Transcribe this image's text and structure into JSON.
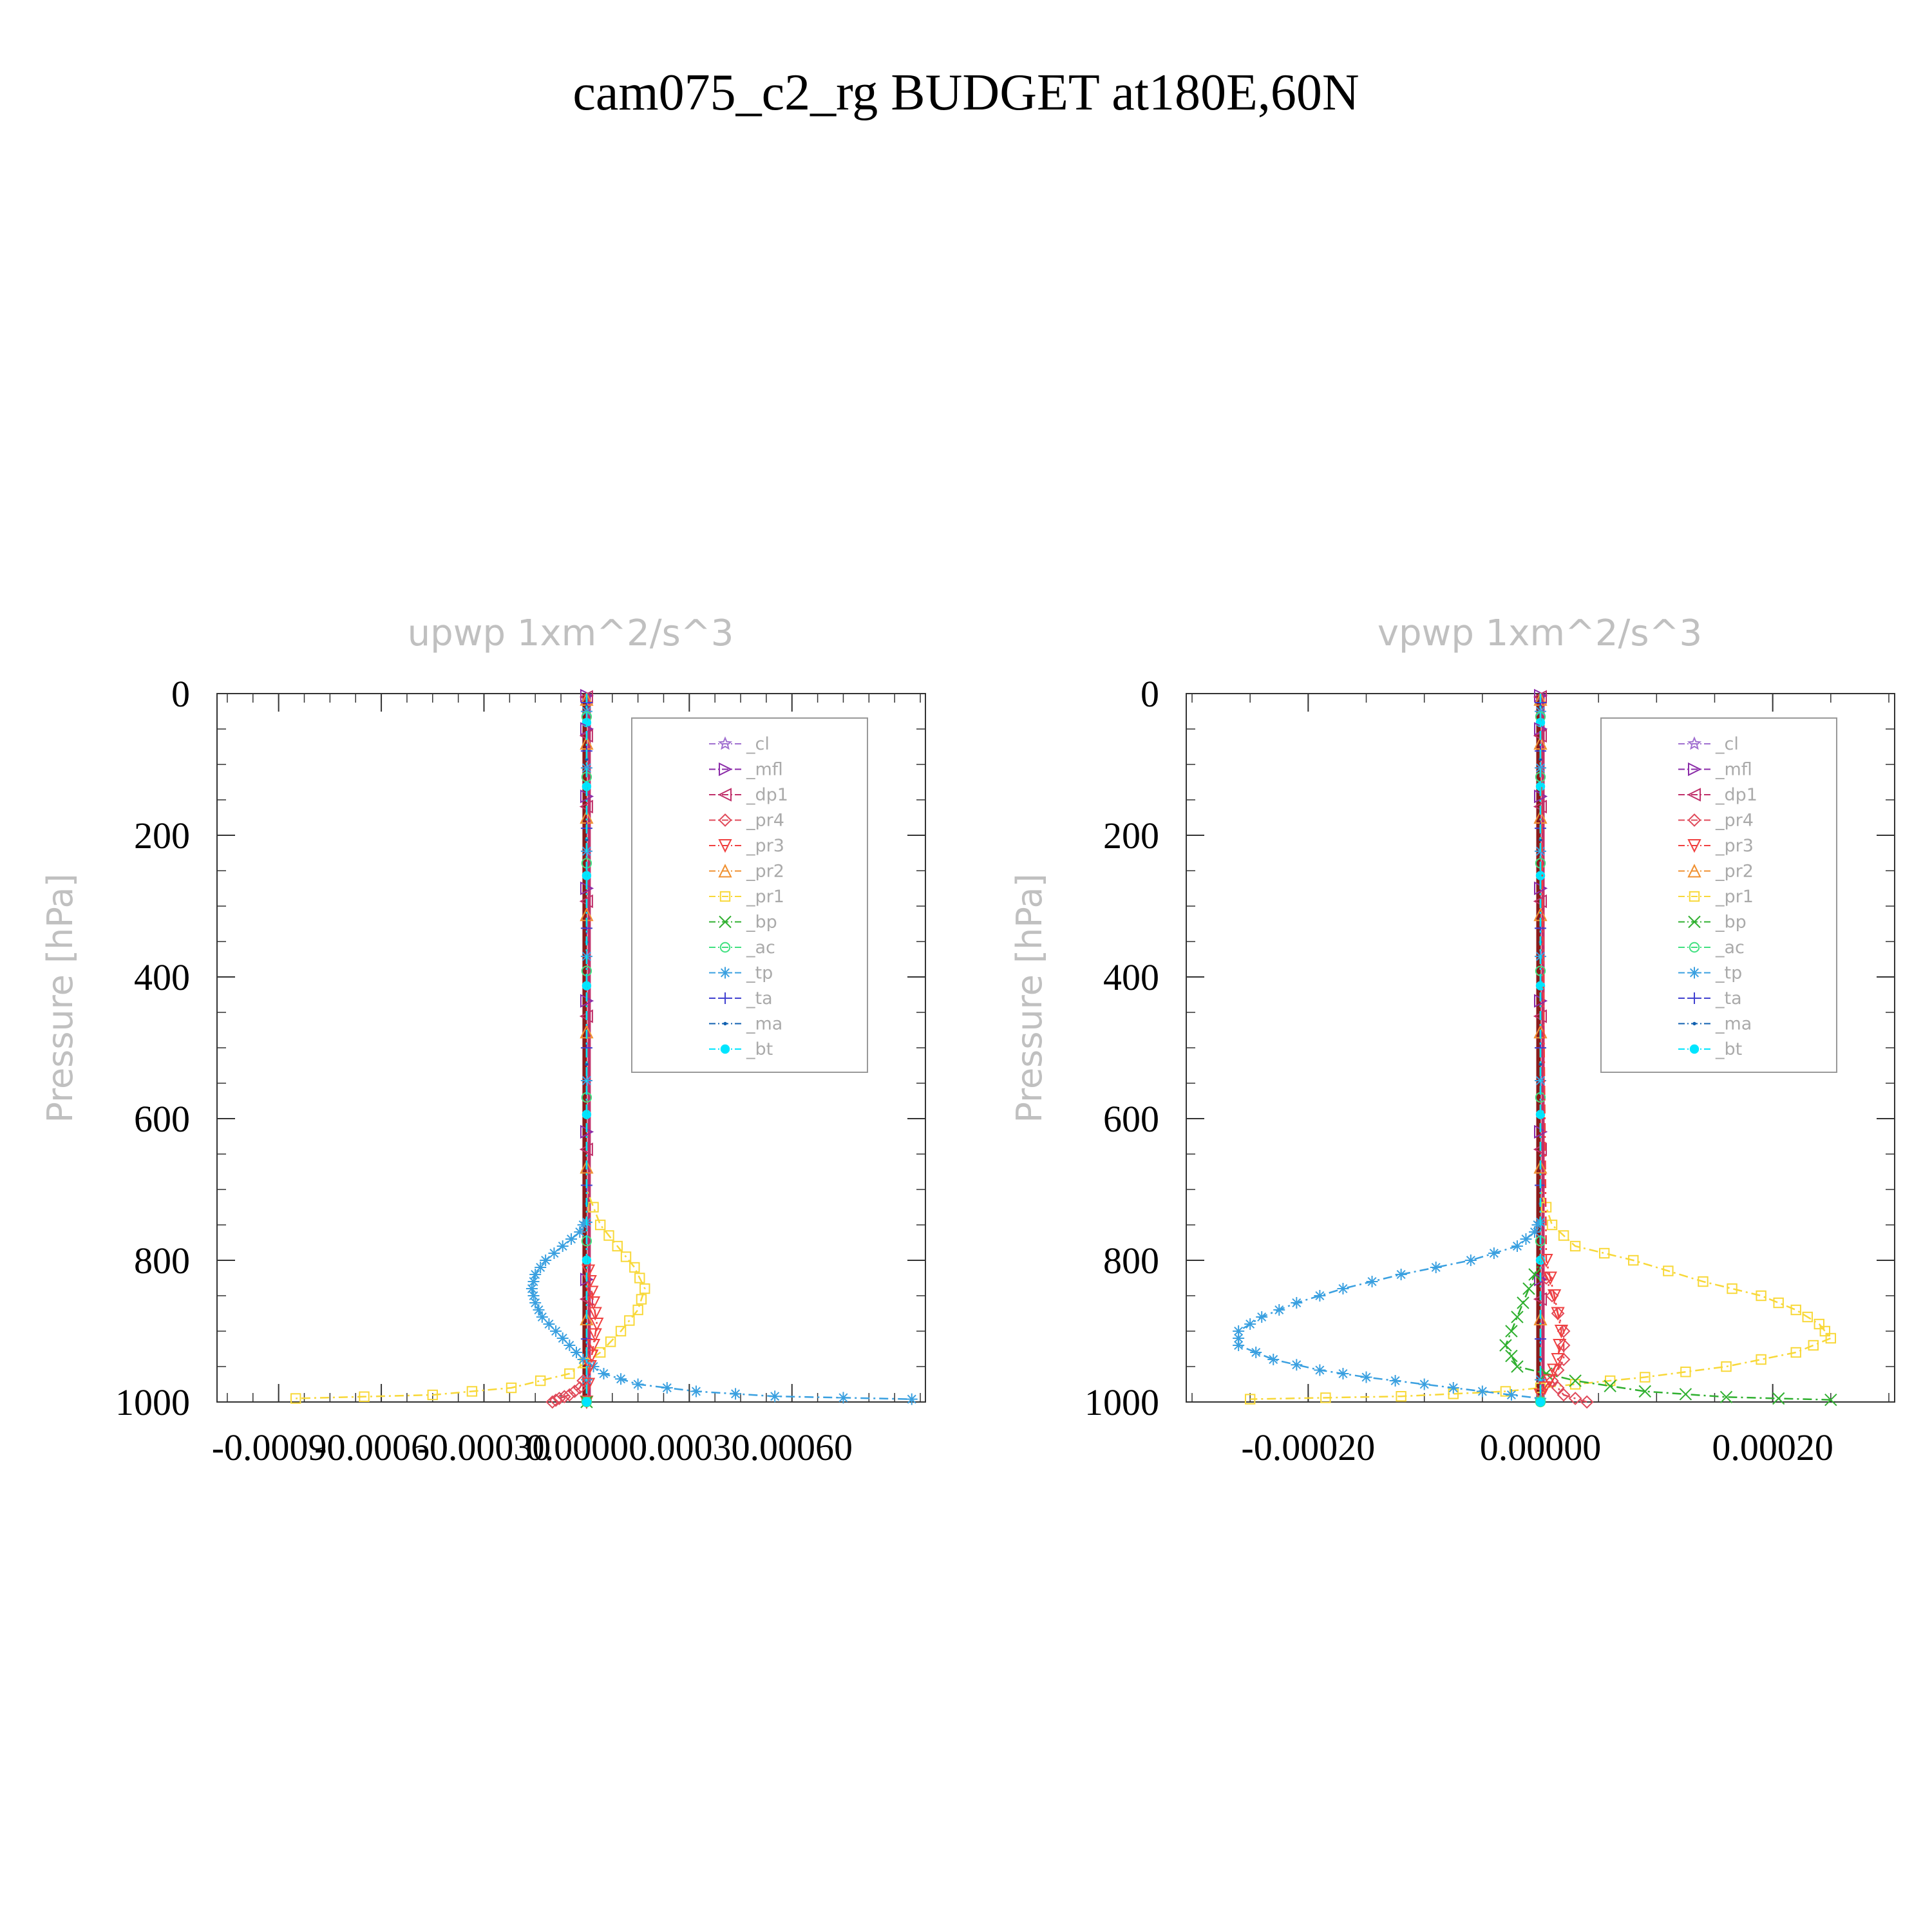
{
  "suptitle": "cam075_c2_rg  BUDGET at180E,60N",
  "colors": {
    "_cl": "#a070d0",
    "_mfl": "#8a2aa8",
    "_dp1": "#c0306a",
    "_pr4": "#e04a5a",
    "_pr3": "#f04040",
    "_pr2": "#f09030",
    "_pr1": "#f8d838",
    "_bp": "#30b030",
    "_ac": "#40e080",
    "_tp": "#3aa0e0",
    "_ta": "#4040d0",
    "_ma": "#1060b0",
    "_bt": "#00e5ff",
    "zero_line": "#8a1a1a"
  },
  "legend": [
    {
      "label": "_cl",
      "marker": "star-icon"
    },
    {
      "label": "_mfl",
      "marker": "triangle-right-icon"
    },
    {
      "label": "_dp1",
      "marker": "triangle-left-icon"
    },
    {
      "label": "_pr4",
      "marker": "diamond-icon"
    },
    {
      "label": "_pr3",
      "marker": "triangle-down-icon"
    },
    {
      "label": "_pr2",
      "marker": "triangle-up-icon"
    },
    {
      "label": "_pr1",
      "marker": "square-icon"
    },
    {
      "label": "_bp",
      "marker": "x-icon"
    },
    {
      "label": "_ac",
      "marker": "circle-icon"
    },
    {
      "label": "_tp",
      "marker": "asterisk-icon"
    },
    {
      "label": "_ta",
      "marker": "plus-icon"
    },
    {
      "label": "_ma",
      "marker": "dot-icon"
    },
    {
      "label": "_bt",
      "marker": "filled-circle-icon"
    }
  ],
  "chart_data": [
    {
      "type": "line",
      "title": "upwp    1xm^2/s^3",
      "ylabel": "Pressure  [hPa]",
      "ylim": [
        1000,
        0
      ],
      "xlim": [
        -0.00108,
        0.00099
      ],
      "xticks": [
        "-0.00090",
        "-0.00060",
        "-0.00030",
        "0.00000",
        "0.00030",
        "0.00060"
      ],
      "xtick_values": [
        -0.0009,
        -0.0006,
        -0.0003,
        0.0,
        0.0003,
        0.0006
      ],
      "yticks": [
        "0",
        "200",
        "400",
        "600",
        "800",
        "1000"
      ],
      "ytick_values": [
        0,
        200,
        400,
        600,
        800,
        1000
      ],
      "legend_position": "top-right",
      "series": [
        {
          "name": "_pr1",
          "pressure": [
            0,
            700,
            750,
            780,
            810,
            840,
            870,
            900,
            930,
            960,
            980,
            990,
            995
          ],
          "values": [
            0,
            0,
            4e-05,
            9e-05,
            0.00014,
            0.00017,
            0.00015,
            0.0001,
            4e-05,
            -5e-05,
            -0.00022,
            -0.00045,
            -0.00085
          ]
        },
        {
          "name": "_tp",
          "pressure": [
            0,
            740,
            760,
            780,
            800,
            820,
            840,
            860,
            880,
            900,
            920,
            940,
            960,
            975,
            985,
            992,
            996
          ],
          "values": [
            0,
            0,
            -2e-05,
            -7e-05,
            -0.00012,
            -0.00015,
            -0.00016,
            -0.00015,
            -0.00013,
            -9e-05,
            -5e-05,
            -1e-05,
            5e-05,
            0.00015,
            0.00032,
            0.00055,
            0.00095
          ]
        },
        {
          "name": "_pr4",
          "pressure": [
            0,
            960,
            980,
            990,
            995,
            1000
          ],
          "values": [
            0,
            0,
            -2e-05,
            -5e-05,
            -8e-05,
            -0.0001
          ]
        },
        {
          "name": "_pr3",
          "pressure": [
            0,
            800,
            830,
            860,
            890,
            920,
            950,
            1000
          ],
          "values": [
            0,
            0,
            1e-05,
            2e-05,
            3e-05,
            2e-05,
            1e-05,
            0
          ]
        },
        {
          "name": "_bp",
          "pressure": [
            0,
            1000
          ],
          "values": [
            0,
            0
          ]
        },
        {
          "name": "_ac",
          "pressure": [
            0,
            1000
          ],
          "values": [
            0,
            0
          ]
        },
        {
          "name": "_bt",
          "pressure": [
            0,
            1000
          ],
          "values": [
            0,
            0
          ]
        }
      ]
    },
    {
      "type": "line",
      "title": "vpwp    1xm^2/s^3",
      "ylabel": "Pressure  [hPa]",
      "ylim": [
        1000,
        0
      ],
      "xlim": [
        -0.000305,
        0.000305
      ],
      "xticks": [
        "-0.00020",
        "0.00000",
        "0.00020"
      ],
      "xtick_values": [
        -0.0002,
        0.0,
        0.0002
      ],
      "yticks": [
        "0",
        "200",
        "400",
        "600",
        "800",
        "1000"
      ],
      "ytick_values": [
        0,
        200,
        400,
        600,
        800,
        1000
      ],
      "legend_position": "top-right",
      "series": [
        {
          "name": "_pr1",
          "pressure": [
            0,
            700,
            750,
            780,
            800,
            830,
            850,
            870,
            890,
            910,
            930,
            950,
            965,
            975,
            985,
            992,
            996
          ],
          "values": [
            0,
            0,
            1e-05,
            3e-05,
            8e-05,
            0.00014,
            0.00019,
            0.00022,
            0.00024,
            0.00025,
            0.00022,
            0.00016,
            9e-05,
            3e-05,
            -3e-05,
            -0.00012,
            -0.00025
          ]
        },
        {
          "name": "_tp",
          "pressure": [
            0,
            740,
            760,
            780,
            800,
            820,
            840,
            860,
            880,
            900,
            920,
            940,
            955,
            965,
            975,
            985,
            995
          ],
          "values": [
            0,
            0,
            -5e-06,
            -2e-05,
            -6e-05,
            -0.00012,
            -0.00017,
            -0.00021,
            -0.00024,
            -0.00026,
            -0.00026,
            -0.00023,
            -0.00019,
            -0.00015,
            -0.0001,
            -5e-05,
            0
          ]
        },
        {
          "name": "_bp",
          "pressure": [
            0,
            800,
            840,
            880,
            920,
            950,
            970,
            985,
            993,
            997
          ],
          "values": [
            0,
            0,
            -1e-05,
            -2e-05,
            -3e-05,
            -2e-05,
            3e-05,
            9e-05,
            0.00016,
            0.00025
          ]
        },
        {
          "name": "_pr4",
          "pressure": [
            0,
            800,
            850,
            900,
            940,
            970,
            990,
            1000
          ],
          "values": [
            0,
            0,
            1e-05,
            2e-05,
            2e-05,
            1e-05,
            2e-05,
            4e-05
          ]
        },
        {
          "name": "_pr3",
          "pressure": [
            0,
            800,
            850,
            900,
            940,
            970,
            990
          ],
          "values": [
            0,
            5e-06,
            1.2e-05,
            1.8e-05,
            1.5e-05,
            8e-06,
            0
          ]
        },
        {
          "name": "_ac",
          "pressure": [
            0,
            1000
          ],
          "values": [
            0,
            0
          ]
        },
        {
          "name": "_bt",
          "pressure": [
            0,
            1000
          ],
          "values": [
            0,
            0
          ]
        }
      ]
    }
  ]
}
